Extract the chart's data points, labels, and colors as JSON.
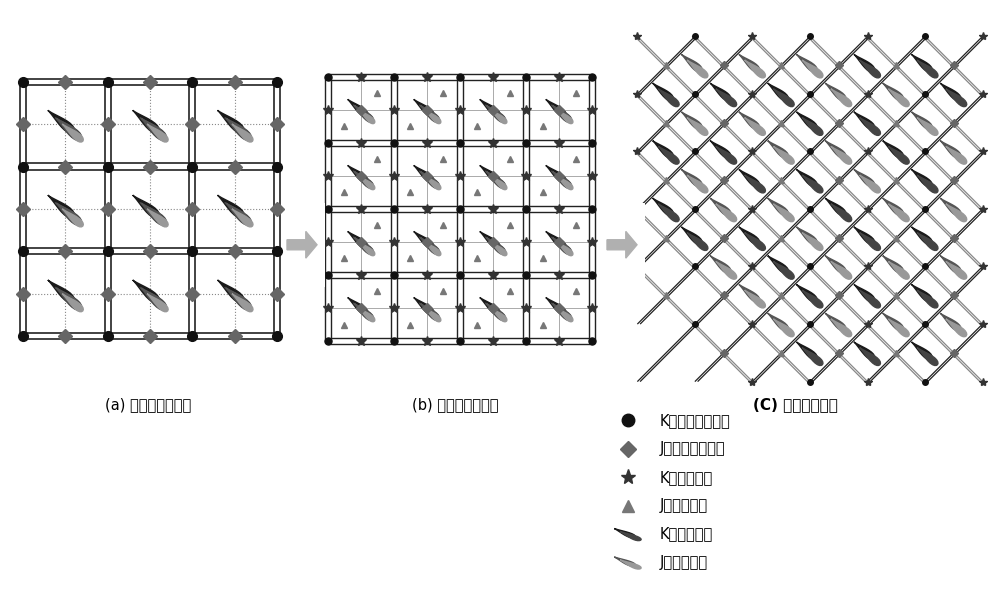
{
  "bg_color": "#ffffff",
  "panel_a_label": "(a) 反九点基础井网",
  "panel_b_label": "(b) 反九点加密井网",
  "panel_c_label": "(C) 五点加密井网",
  "legend_labels": [
    "K层系基础井网井",
    "J层系基础井网井",
    "K层系加密井",
    "J层系加密井",
    "K层系注水井",
    "J层系注水井"
  ],
  "arrow_gray": "#b0b0b0",
  "line_k": "#222222",
  "line_j": "#888888",
  "well_k_color": "#111111",
  "well_j_color": "#666666",
  "star_k_color": "#333333",
  "tri_j_color": "#777777",
  "inj_k_dark": "#1a1a1a",
  "inj_k_mid": "#444444",
  "inj_j_dark": "#555555",
  "inj_j_light": "#999999"
}
